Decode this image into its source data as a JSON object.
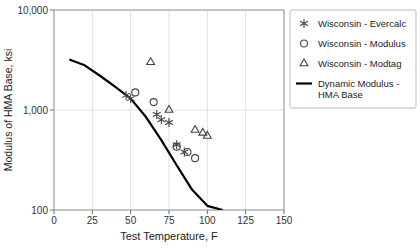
{
  "chart_data": {
    "type": "line",
    "xlabel": "Test Temperature, F",
    "ylabel": "Modulus of HMA Base, ksi",
    "xlim": [
      0,
      150
    ],
    "ylim": [
      100,
      10000
    ],
    "xticks": [
      0,
      25,
      50,
      75,
      100,
      125,
      150
    ],
    "yticks": [
      100,
      {
        "value": 1000,
        "label": "1,000"
      },
      {
        "value": 10000,
        "label": "10,000"
      }
    ],
    "log": "y",
    "grid": true,
    "legend": "right",
    "series": [
      {
        "name": "Wisconsin - Evercalc",
        "type": "scatter",
        "marker": "star",
        "color": "#444444",
        "x": [
          47,
          50,
          67,
          70,
          75,
          80,
          85
        ],
        "values": [
          1400,
          1300,
          900,
          800,
          750,
          450,
          380
        ]
      },
      {
        "name": "Wisconsin - Modulus",
        "type": "scatter",
        "marker": "circle",
        "color": "#444444",
        "x": [
          53,
          65,
          80,
          87,
          92
        ],
        "values": [
          1500,
          1200,
          430,
          380,
          330
        ]
      },
      {
        "name": "Wisconsin - Modtag",
        "type": "scatter",
        "marker": "triangle",
        "color": "#444444",
        "x": [
          63,
          75,
          92,
          97,
          100
        ],
        "values": [
          3000,
          1000,
          630,
          590,
          550
        ]
      },
      {
        "name": "Dynamic Modulus -\nHMA Base",
        "type": "line",
        "line_style": "solid",
        "color": "#000000",
        "x": [
          10,
          20,
          30,
          40,
          50,
          60,
          70,
          80,
          90,
          100,
          110
        ],
        "values": [
          3200,
          2800,
          2200,
          1700,
          1300,
          850,
          500,
          280,
          160,
          110,
          100
        ]
      }
    ]
  }
}
